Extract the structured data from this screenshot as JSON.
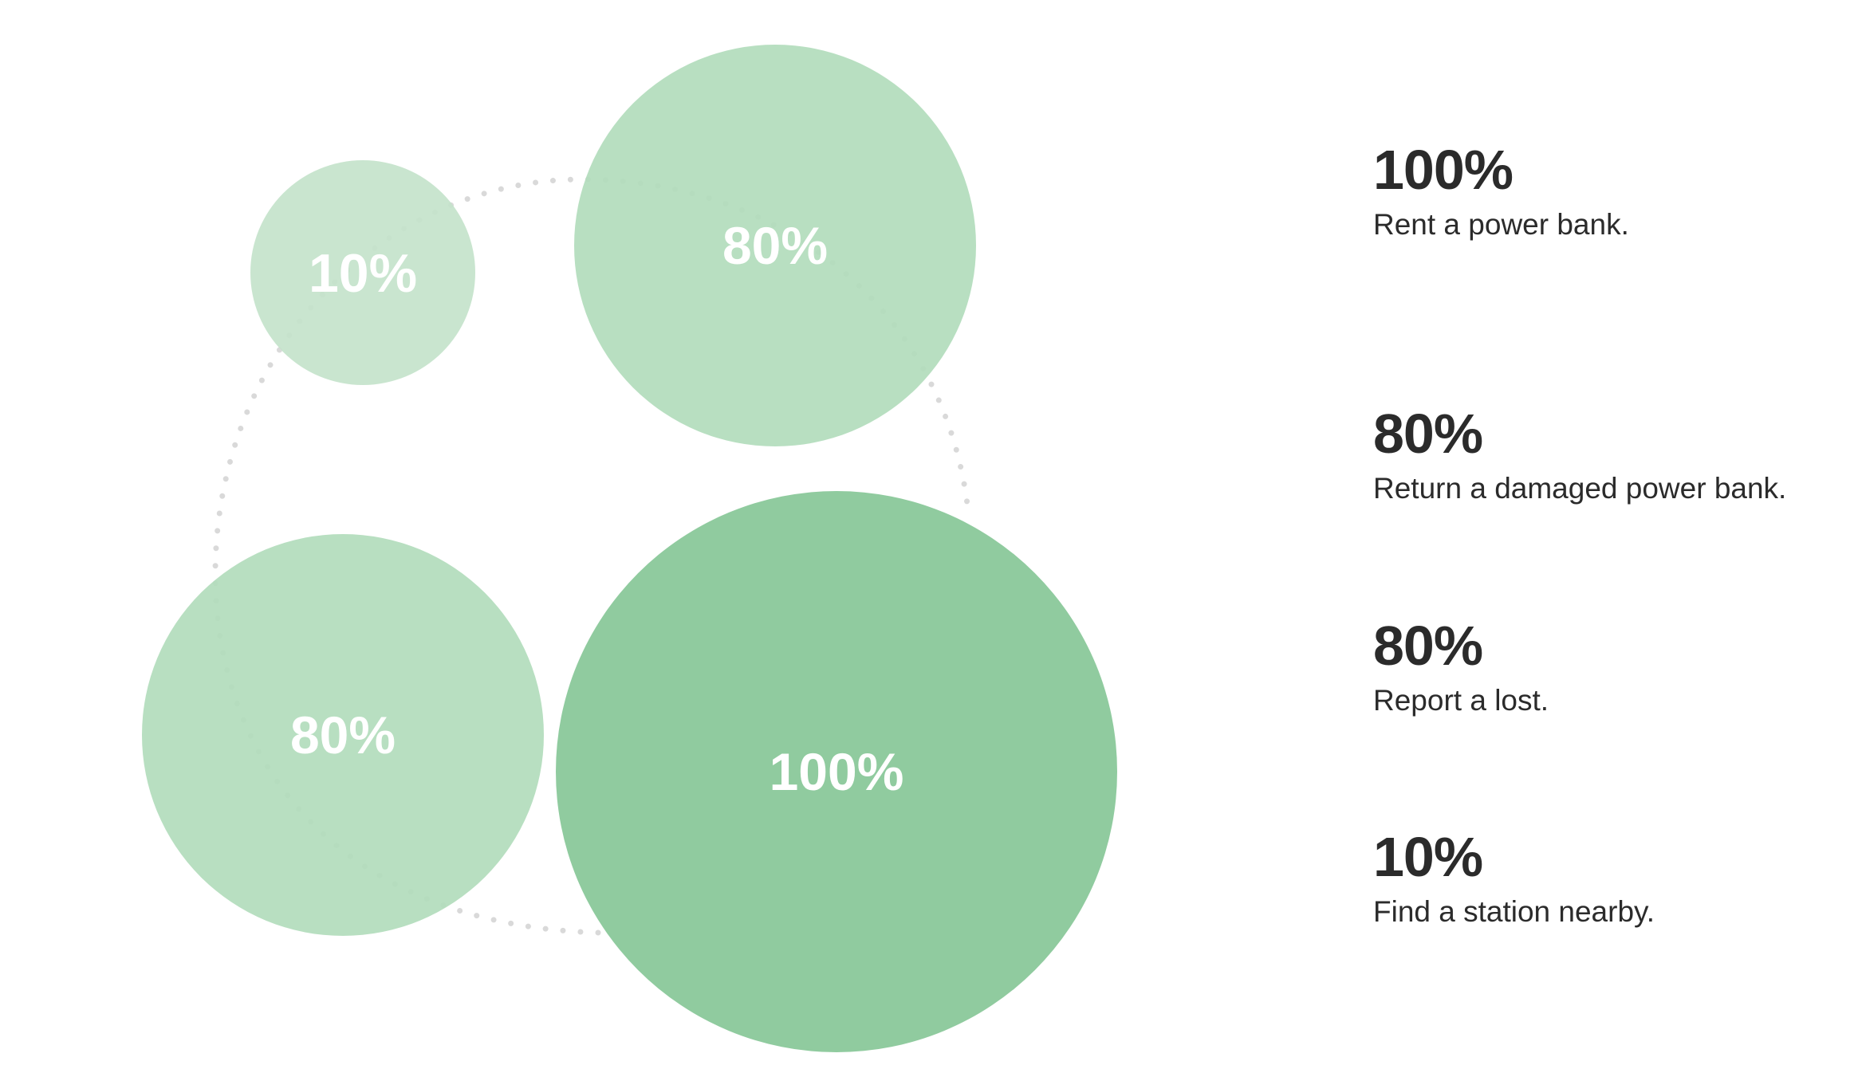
{
  "chart_data": {
    "type": "bubble",
    "title": "",
    "colors": {
      "bubble_light": "#c4e3cb",
      "bubble_medium": "#b2dcbc",
      "bubble_strong": "#87c797",
      "label": "#ffffff",
      "ring_dots": "#d9d9d9",
      "legend_text": "#2b2b2b"
    },
    "bubbles": [
      {
        "label": "10%",
        "value": 10,
        "color": "#c4e3cb"
      },
      {
        "label": "80%",
        "value": 80,
        "color": "#b2dcbc"
      },
      {
        "label": "80%",
        "value": 80,
        "color": "#b2dcbc"
      },
      {
        "label": "100%",
        "value": 100,
        "color": "#87c797"
      }
    ],
    "legend": [
      {
        "value": "100%",
        "text": "Rent a power bank."
      },
      {
        "value": "80%",
        "text": "Return a damaged power bank."
      },
      {
        "value": "80%",
        "text": "Report a lost."
      },
      {
        "value": "10%",
        "text": "Find a station nearby."
      }
    ]
  }
}
